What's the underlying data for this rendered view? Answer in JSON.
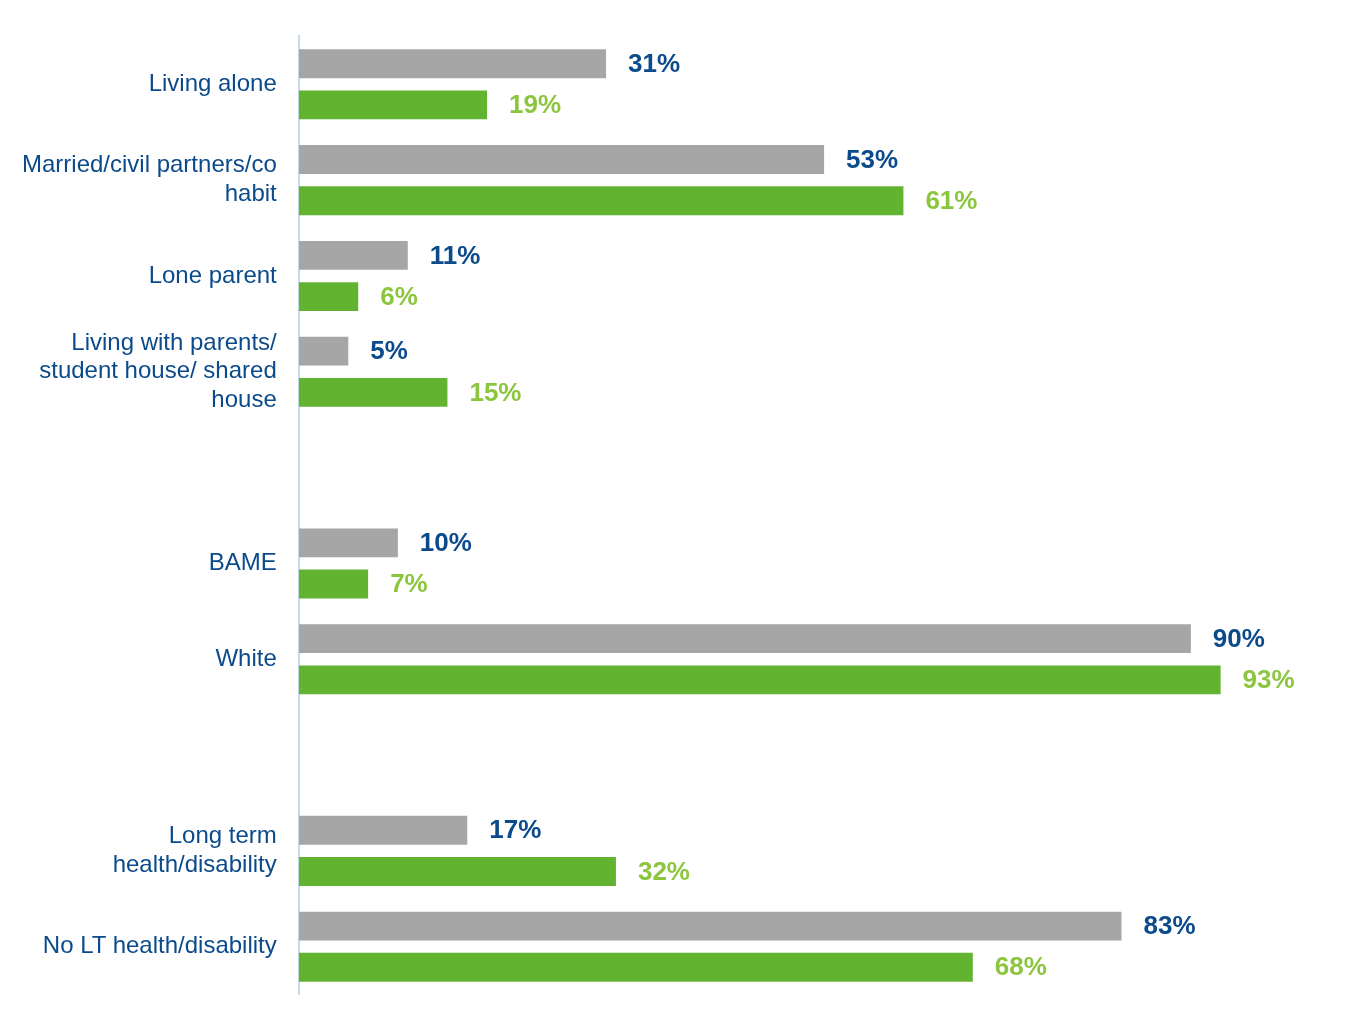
{
  "chart_data": {
    "type": "bar",
    "orientation": "horizontal",
    "legend": false,
    "categories": [
      "Living alone",
      "Married/civil partners/co habit",
      "Lone parent",
      "Living with parents/ student house/ shared house",
      null,
      "BAME",
      "White",
      null,
      "Long term health/disability",
      "No LT health/disability"
    ],
    "series": [
      {
        "color": "#a6a6a6",
        "values": [
          31,
          53,
          11,
          5,
          null,
          10,
          90,
          null,
          17,
          83
        ],
        "value_labels": [
          "31%",
          "53%",
          "11%",
          "5%",
          null,
          "10%",
          "90%",
          null,
          "17%",
          "83%"
        ]
      },
      {
        "color": "#62b32f",
        "values": [
          19,
          61,
          6,
          15,
          null,
          7,
          93,
          null,
          32,
          68
        ],
        "value_labels": [
          "19%",
          "61%",
          "6%",
          "15%",
          null,
          "7%",
          "93%",
          null,
          "32%",
          "68%"
        ]
      }
    ]
  }
}
